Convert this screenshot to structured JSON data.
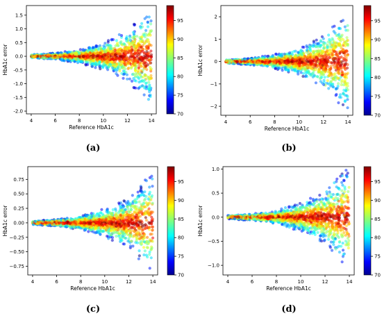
{
  "chart_data": [
    {
      "type": "scatter",
      "caption": "(a)",
      "xlabel": "Reference HbA1c",
      "ylabel": "HbA1c error",
      "xlim": [
        3.6,
        14.4
      ],
      "ylim": [
        -2.1,
        1.85
      ],
      "x_ticks": [
        4,
        6,
        8,
        10,
        12,
        14
      ],
      "y_ticks": [
        -2.0,
        -1.5,
        -1.0,
        -0.5,
        0.0,
        0.5,
        1.0,
        1.5
      ],
      "y_tick_labels": [
        "-2.0",
        "-1.5",
        "-1.0",
        "-0.5",
        "0.0",
        "0.5",
        "1.0",
        "1.5"
      ],
      "colorbar": {
        "ticks": [
          70,
          75,
          80,
          85,
          90,
          95
        ],
        "range": [
          70,
          99
        ]
      },
      "spread": [
        [
          4,
          0.06
        ],
        [
          6,
          0.12
        ],
        [
          8,
          0.25
        ],
        [
          10,
          0.5
        ],
        [
          12,
          0.95
        ],
        [
          14,
          1.8
        ]
      ]
    },
    {
      "type": "scatter",
      "caption": "(b)",
      "xlabel": "Reference HbA1c",
      "ylabel": "HbA1c error",
      "xlim": [
        3.6,
        14.4
      ],
      "ylim": [
        -2.4,
        2.5
      ],
      "x_ticks": [
        4,
        6,
        8,
        10,
        12,
        14
      ],
      "y_ticks": [
        -2,
        -1,
        0,
        1,
        2
      ],
      "y_tick_labels": [
        "−2",
        "−1",
        "0",
        "1",
        "2"
      ],
      "colorbar": {
        "ticks": [
          70,
          75,
          80,
          85,
          90,
          95
        ],
        "range": [
          70,
          99
        ]
      },
      "spread": [
        [
          4,
          0.08
        ],
        [
          6,
          0.15
        ],
        [
          8,
          0.32
        ],
        [
          10,
          0.6
        ],
        [
          12,
          1.2
        ],
        [
          14,
          2.3
        ]
      ]
    },
    {
      "type": "scatter",
      "caption": "(c)",
      "xlabel": "Reference HbA1c",
      "ylabel": "HbA1c error",
      "xlim": [
        3.6,
        14.4
      ],
      "ylim": [
        -0.9,
        0.97
      ],
      "x_ticks": [
        4,
        6,
        8,
        10,
        12,
        14
      ],
      "y_ticks": [
        -0.75,
        -0.5,
        -0.25,
        0.0,
        0.25,
        0.5,
        0.75
      ],
      "y_tick_labels": [
        "−0.75",
        "−0.50",
        "−0.25",
        "0.00",
        "0.25",
        "0.50",
        "0.75"
      ],
      "colorbar": {
        "ticks": [
          70,
          75,
          80,
          85,
          90,
          95
        ],
        "range": [
          70,
          99
        ]
      },
      "spread": [
        [
          4,
          0.03
        ],
        [
          6,
          0.06
        ],
        [
          8,
          0.12
        ],
        [
          10,
          0.25
        ],
        [
          12,
          0.45
        ],
        [
          14,
          0.88
        ]
      ]
    },
    {
      "type": "scatter",
      "caption": "(d)",
      "xlabel": "Reference HbA1c",
      "ylabel": "HbA1c error",
      "xlim": [
        3.6,
        14.4
      ],
      "ylim": [
        -1.2,
        1.05
      ],
      "x_ticks": [
        4,
        6,
        8,
        10,
        12,
        14
      ],
      "y_ticks": [
        -1.0,
        -0.5,
        0.0,
        0.5,
        1.0
      ],
      "y_tick_labels": [
        "−1.0",
        "−0.5",
        "0.0",
        "0.5",
        "1.0"
      ],
      "colorbar": {
        "ticks": [
          70,
          75,
          80,
          85,
          90,
          95
        ],
        "range": [
          70,
          99
        ]
      },
      "spread": [
        [
          4,
          0.04
        ],
        [
          6,
          0.07
        ],
        [
          8,
          0.14
        ],
        [
          10,
          0.3
        ],
        [
          12,
          0.55
        ],
        [
          14,
          1.1
        ]
      ]
    }
  ]
}
